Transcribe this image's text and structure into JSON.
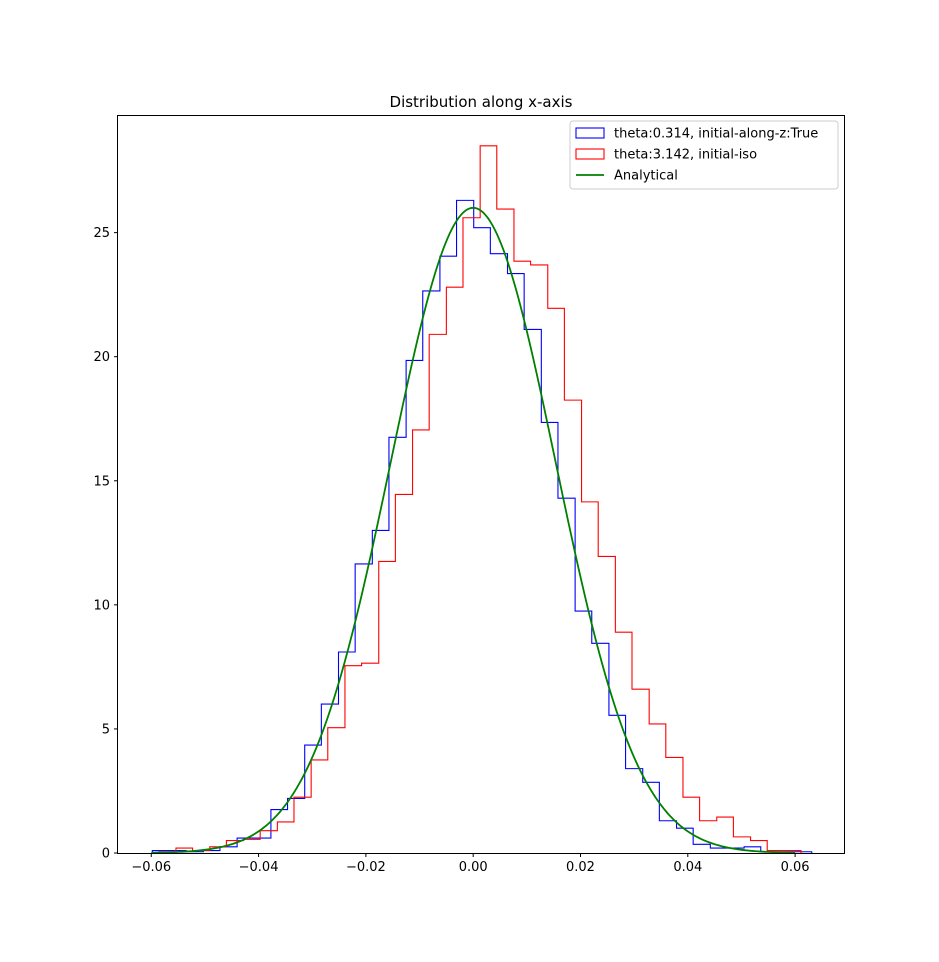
{
  "chart_data": {
    "type": "histogram",
    "title": "Distribution along x-axis",
    "xlabel": "",
    "ylabel": "",
    "xlim": [
      -0.0662,
      0.0693
    ],
    "ylim": [
      0,
      29.7
    ],
    "x_ticks": [
      {
        "value": -0.06,
        "label": "−0.06"
      },
      {
        "value": -0.04,
        "label": "−0.04"
      },
      {
        "value": -0.02,
        "label": "−0.02"
      },
      {
        "value": 0.0,
        "label": "0.00"
      },
      {
        "value": 0.02,
        "label": "0.02"
      },
      {
        "value": 0.04,
        "label": "0.04"
      },
      {
        "value": 0.06,
        "label": "0.06"
      }
    ],
    "y_ticks": [
      {
        "value": 0,
        "label": "0"
      },
      {
        "value": 5,
        "label": "5"
      },
      {
        "value": 10,
        "label": "10"
      },
      {
        "value": 15,
        "label": "15"
      },
      {
        "value": 20,
        "label": "20"
      },
      {
        "value": 25,
        "label": "25"
      }
    ],
    "grid": false,
    "legend_position": "top-right",
    "series": [
      {
        "name": "theta:0.314, initial-along-z:True",
        "kind": "step-histogram",
        "color": "#0000ff",
        "bin_edges": [
          -0.0598,
          -0.0566,
          -0.0535,
          -0.0503,
          -0.0472,
          -0.044,
          -0.0409,
          -0.0377,
          -0.0346,
          -0.0314,
          -0.0283,
          -0.0251,
          -0.022,
          -0.0188,
          -0.0157,
          -0.0125,
          -0.0094,
          -0.0062,
          -0.0031,
          0.0001,
          0.0032,
          0.0064,
          0.0095,
          0.0127,
          0.0158,
          0.019,
          0.0221,
          0.0253,
          0.0284,
          0.0316,
          0.0347,
          0.0379,
          0.041,
          0.0442,
          0.0473,
          0.0505,
          0.0536,
          0.0568,
          0.0599,
          0.0631
        ],
        "values": [
          0.1,
          0.1,
          0.05,
          0.1,
          0.25,
          0.6,
          0.6,
          1.75,
          2.2,
          4.35,
          6.0,
          8.1,
          11.65,
          13.0,
          16.75,
          19.85,
          22.65,
          24.05,
          26.3,
          25.2,
          24.15,
          23.35,
          21.1,
          17.35,
          14.3,
          9.75,
          8.45,
          5.55,
          3.4,
          2.85,
          1.3,
          1.0,
          0.35,
          0.2,
          0.2,
          0.25,
          0.05,
          0.05,
          0.05
        ]
      },
      {
        "name": "theta:3.142, initial-iso",
        "kind": "step-histogram",
        "color": "#ff0000",
        "bin_edges": [
          -0.0586,
          -0.0554,
          -0.0523,
          -0.0491,
          -0.046,
          -0.0428,
          -0.0397,
          -0.0365,
          -0.0334,
          -0.0302,
          -0.0271,
          -0.0239,
          -0.0208,
          -0.0176,
          -0.0145,
          -0.0113,
          -0.0082,
          -0.005,
          -0.0019,
          0.0013,
          0.0044,
          0.0076,
          0.0107,
          0.0139,
          0.017,
          0.0202,
          0.0233,
          0.0265,
          0.0296,
          0.0328,
          0.0359,
          0.0391,
          0.0422,
          0.0454,
          0.0485,
          0.0517,
          0.0548,
          0.058,
          0.0611
        ],
        "values": [
          0.05,
          0.2,
          0.1,
          0.25,
          0.5,
          0.55,
          0.9,
          1.25,
          2.25,
          3.75,
          5.05,
          7.55,
          7.65,
          11.75,
          14.45,
          17.05,
          20.9,
          22.8,
          25.6,
          28.5,
          25.95,
          23.85,
          23.7,
          21.95,
          18.25,
          14.15,
          11.95,
          8.9,
          6.6,
          5.2,
          3.85,
          2.25,
          1.3,
          1.45,
          0.65,
          0.5,
          0.1,
          0.1
        ]
      },
      {
        "name": "Analytical",
        "kind": "line",
        "color": "#008000",
        "function": "gaussian",
        "amplitude": 26.0,
        "mean": 0.0,
        "sigma": 0.01535,
        "x_range": [
          -0.06,
          0.06
        ]
      }
    ]
  }
}
